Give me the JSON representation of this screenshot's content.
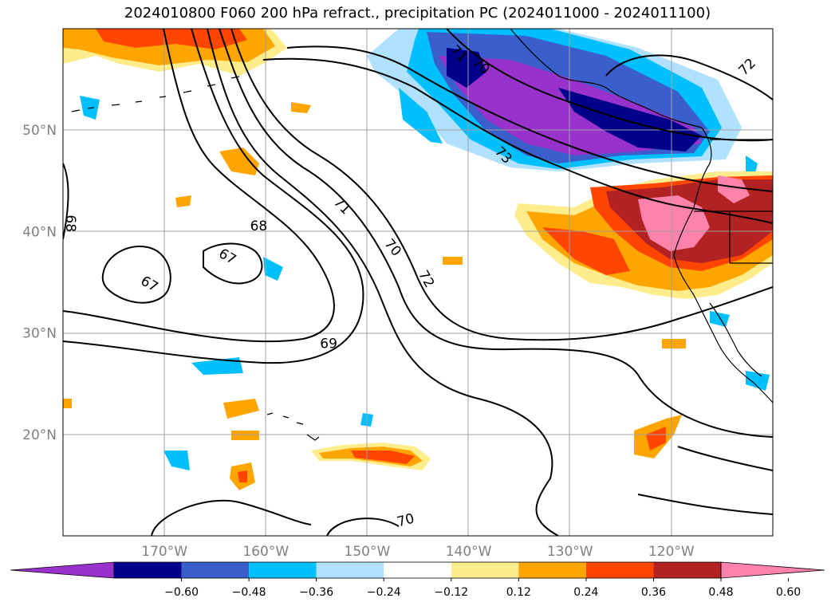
{
  "title": "2024010800 F060 200 hPa refract., precipitation PC (2024011000 - 2024011100)",
  "lat_labels": [
    {
      "text": "50°N",
      "lat": 50
    },
    {
      "text": "40°N",
      "lat": 40
    },
    {
      "text": "30°N",
      "lat": 30
    },
    {
      "text": "20°N",
      "lat": 20
    }
  ],
  "lon_labels": [
    {
      "text": "170°W",
      "lon": -170
    },
    {
      "text": "160°W",
      "lon": -160
    },
    {
      "text": "150°W",
      "lon": -150
    },
    {
      "text": "140°W",
      "lon": -140
    },
    {
      "text": "130°W",
      "lon": -130
    },
    {
      "text": "120°W",
      "lon": -120
    }
  ],
  "colorbar": {
    "labels": [
      "−0.60",
      "−0.48",
      "−0.36",
      "−0.24",
      "−0.12",
      "0.12",
      "0.24",
      "0.36",
      "0.48",
      "0.60"
    ],
    "colors": [
      "#9932cc",
      "#00008b",
      "#3a5fcd",
      "#00bfff",
      "#b0e2ff",
      "#ffffff",
      "#ffec8b",
      "#ffa500",
      "#ff4500",
      "#b22222",
      "#ff82ab"
    ]
  },
  "contour_labels": [
    {
      "text": "67",
      "lon": -171.5,
      "lat": 34.8,
      "rotate": 30
    },
    {
      "text": "67",
      "lon": -163.8,
      "lat": 37.5,
      "rotate": 30
    },
    {
      "text": "68",
      "lon": -179.3,
      "lat": 40.8,
      "rotate": 90
    },
    {
      "text": "68",
      "lon": -160.7,
      "lat": 40.5,
      "rotate": 0
    },
    {
      "text": "69",
      "lon": -153.8,
      "lat": 28.9,
      "rotate": 0
    },
    {
      "text": "70",
      "lon": -146.2,
      "lat": 11.5,
      "rotate": -15
    },
    {
      "text": "70",
      "lon": -147.5,
      "lat": 38.4,
      "rotate": 50
    },
    {
      "text": "70",
      "lon": -138.8,
      "lat": 56.3,
      "rotate": 40
    },
    {
      "text": "71",
      "lon": -152.5,
      "lat": 42.5,
      "rotate": 45
    },
    {
      "text": "71",
      "lon": -141.0,
      "lat": 57.5,
      "rotate": 45
    },
    {
      "text": "72",
      "lon": -144.2,
      "lat": 35.3,
      "rotate": 60
    },
    {
      "text": "72",
      "lon": -112.5,
      "lat": 56.2,
      "rotate": -45
    },
    {
      "text": "73",
      "lon": -136.6,
      "lat": 47.5,
      "rotate": 45
    }
  ]
}
